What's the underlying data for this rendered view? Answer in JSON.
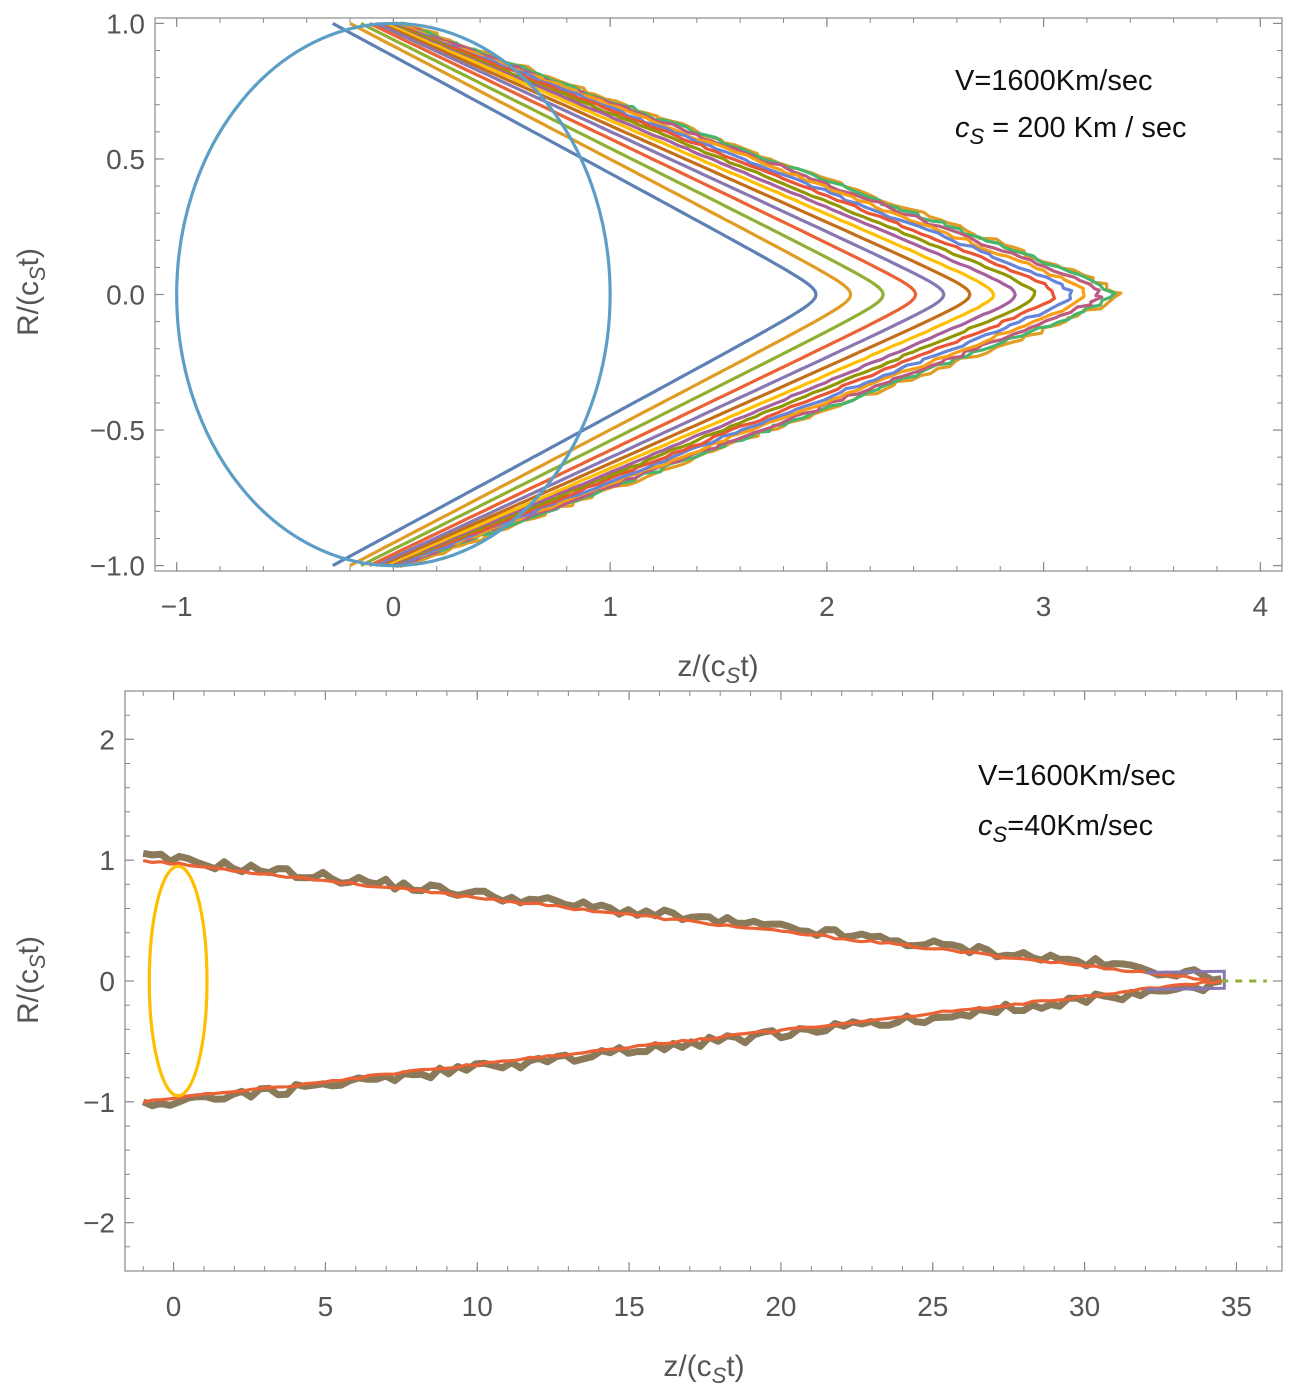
{
  "colors": {
    "frame": "#8a8a8a",
    "text": "#555555",
    "annotation": "#111111",
    "series_palette": [
      "#5e81b5",
      "#e19c24",
      "#8fb032",
      "#eb6235",
      "#8778b3",
      "#c56e1a",
      "#5d9ec7",
      "#ffbf00",
      "#a5609d",
      "#929600",
      "#e95536",
      "#6685d9",
      "#f89f13",
      "#bc5b80",
      "#47b66d"
    ]
  },
  "chart_data": [
    {
      "type": "line",
      "title": "",
      "annotation_lines": [
        "V=1600Km/sec",
        "c_S = 200 Km / sec"
      ],
      "annotation_display": [
        "V=1600Km/sec",
        "cS = 200 Km / sec"
      ],
      "xlabel": "z/(c_S t)",
      "ylabel": "R/(c_S t)",
      "xlabel_parts": [
        "z/(c",
        "S",
        "t)"
      ],
      "ylabel_parts": [
        "R/(c",
        "S",
        "t)"
      ],
      "xlim": [
        -1.1,
        4.1
      ],
      "ylim": [
        -1.02,
        1.02
      ],
      "xticks": [
        -1,
        0,
        1,
        2,
        3,
        4
      ],
      "xtick_labels": [
        "−1",
        "0",
        "1",
        "2",
        "3",
        "4"
      ],
      "yticks": [
        -1,
        -0.5,
        0,
        0.5,
        1
      ],
      "ytick_labels": [
        "−1.0",
        "−0.5",
        "0.0",
        "0.5",
        "1.0"
      ],
      "grid": false,
      "sound_circle": {
        "center": [
          0,
          0
        ],
        "radius": 1,
        "color": "#5d9ec7"
      },
      "series": [
        {
          "tip_z": 1.95,
          "start_z": -0.28,
          "color": "#5e81b5"
        },
        {
          "tip_z": 2.11,
          "start_z": -0.2,
          "color": "#e19c24"
        },
        {
          "tip_z": 2.26,
          "start_z": -0.15,
          "color": "#8fb032"
        },
        {
          "tip_z": 2.41,
          "start_z": -0.11,
          "color": "#eb6235"
        },
        {
          "tip_z": 2.54,
          "start_z": -0.08,
          "color": "#8778b3"
        },
        {
          "tip_z": 2.66,
          "start_z": -0.06,
          "color": "#c56e1a"
        },
        {
          "tip_z": 2.77,
          "start_z": -0.04,
          "color": "#ffbf00"
        },
        {
          "tip_z": 2.87,
          "start_z": -0.03,
          "color": "#a5609d"
        },
        {
          "tip_z": 2.96,
          "start_z": -0.02,
          "color": "#929600"
        },
        {
          "tip_z": 3.05,
          "start_z": -0.01,
          "color": "#e95536"
        },
        {
          "tip_z": 3.13,
          "start_z": 0.0,
          "color": "#6685d9"
        },
        {
          "tip_z": 3.2,
          "start_z": 0.01,
          "color": "#f89f13"
        },
        {
          "tip_z": 3.26,
          "start_z": 0.02,
          "color": "#bc5b80"
        },
        {
          "tip_z": 3.31,
          "start_z": 0.03,
          "color": "#47b66d"
        },
        {
          "tip_z": 3.34,
          "start_z": 0.05,
          "color": "#e19c24"
        }
      ]
    },
    {
      "type": "line",
      "title": "",
      "annotation_lines": [
        "V=1600Km/sec",
        "c_S=40Km/sec"
      ],
      "annotation_display": [
        "V=1600Km/sec",
        "cS=40Km/sec"
      ],
      "xlabel": "z/(c_S t)",
      "ylabel": "R/(c_S t)",
      "xlabel_parts": [
        "z/(c",
        "S",
        "t)"
      ],
      "ylabel_parts": [
        "R/(c",
        "S",
        "t)"
      ],
      "xlim": [
        -1.6,
        36.5
      ],
      "ylim": [
        -2.4,
        2.4
      ],
      "xticks": [
        0,
        5,
        10,
        15,
        20,
        25,
        30,
        35
      ],
      "xtick_labels": [
        "0",
        "5",
        "10",
        "15",
        "20",
        "25",
        "30",
        "35"
      ],
      "yticks": [
        -2,
        -1,
        0,
        1,
        2
      ],
      "ytick_labels": [
        "−2",
        "−1",
        "0",
        "1",
        "2"
      ],
      "grid": false,
      "sound_circle": {
        "center": [
          0.15,
          0
        ],
        "rx": 0.95,
        "ry": 0.95,
        "color": "#ffbf00"
      },
      "cone": {
        "start_z": -1,
        "start_r": 1,
        "tip_z": 34.5,
        "tip_r": 0,
        "color_outer": "#eb6235",
        "color_inner": "#8a7a5a"
      },
      "dashed_axis": {
        "from_z": 34.5,
        "to_z": 36,
        "color": "#8fb032"
      }
    }
  ]
}
